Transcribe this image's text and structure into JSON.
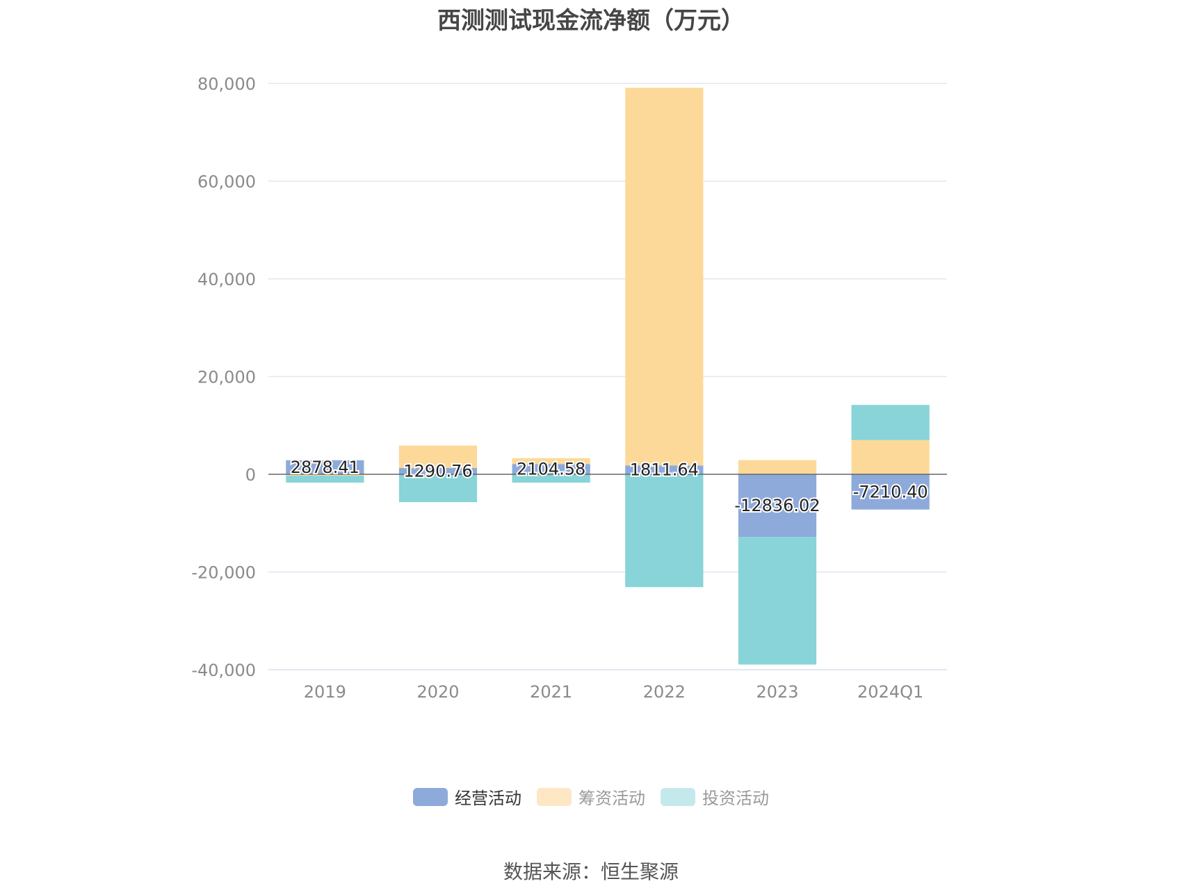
{
  "source": "数据来源：恒生聚源",
  "chart_data": {
    "type": "bar",
    "stacked": true,
    "title": "西测测试现金流净额（万元）",
    "categories": [
      "2019",
      "2020",
      "2021",
      "2022",
      "2023",
      "2024Q1"
    ],
    "ylim": [
      -40000,
      80000
    ],
    "yticks": [
      80000,
      60000,
      40000,
      20000,
      0,
      -20000,
      -40000
    ],
    "ytick_labels": [
      "80,000",
      "60,000",
      "40,000",
      "20,000",
      "0",
      "-20,000",
      "-40,000"
    ],
    "grid": true,
    "legend_position": "bottom",
    "series": [
      {
        "name": "经营活动",
        "color": "#8eaadb",
        "values": [
          2878.41,
          1290.76,
          2104.58,
          1811.64,
          -12836.02,
          -7210.4
        ],
        "labels": [
          "2878.41",
          "1290.76",
          "2104.58",
          "1811.64",
          "-12836.02",
          "-7210.40"
        ]
      },
      {
        "name": "筹资活动",
        "color": "#fdd999",
        "values": [
          -300,
          4600,
          1200,
          77300,
          2900,
          7000
        ]
      },
      {
        "name": "投资活动",
        "color": "#88d4d8",
        "values": [
          -1400,
          -5700,
          -1700,
          -23100,
          -26100,
          7200
        ]
      }
    ],
    "legend_swatch_colors": [
      "#8eaadb",
      "#fde7c4",
      "#c4e9ec"
    ]
  }
}
